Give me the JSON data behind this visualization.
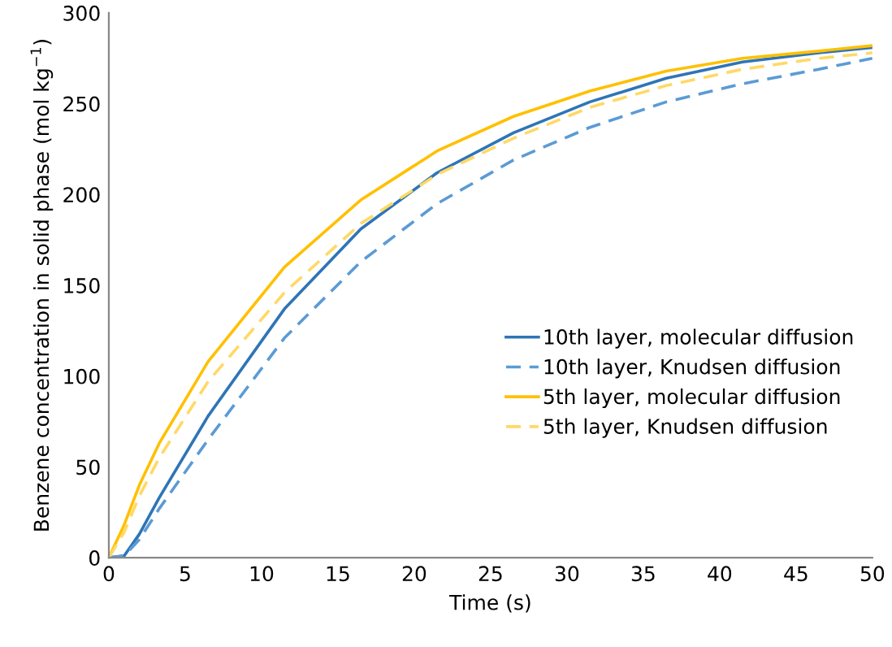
{
  "chart_data": {
    "type": "line",
    "xlabel": "Time (s)",
    "ylabel": "Benzene concentration in solid phase (mol kg$^{−1}$)",
    "x": [
      0,
      1,
      2,
      3.3,
      6.5,
      11.5,
      16.5,
      21.5,
      26.5,
      31.5,
      36.5,
      41.5,
      46.5,
      50
    ],
    "series": [
      {
        "name": "10th layer, molecular diffusion",
        "color": "#2e75b6",
        "line_style": "solid",
        "values": [
          0,
          1,
          13,
          33,
          78,
          137,
          181,
          212,
          234,
          251,
          264,
          273,
          278,
          281
        ]
      },
      {
        "name": "10th layer, Knudsen diffusion",
        "color": "#5b9bd5",
        "line_style": "dashed",
        "values": [
          0,
          1,
          10,
          27,
          65,
          121,
          163,
          195,
          219,
          237,
          251,
          261,
          269,
          275
        ]
      },
      {
        "name": "5th layer, molecular diffusion",
        "color": "#ffc000",
        "line_style": "solid",
        "values": [
          0,
          18,
          40,
          63,
          108,
          160,
          197,
          224,
          243,
          257,
          268,
          275,
          279,
          282
        ]
      },
      {
        "name": "5th layer, Knudsen diffusion",
        "color": "#ffd966",
        "line_style": "dashed",
        "values": [
          0,
          14,
          34,
          55,
          97,
          146,
          184,
          211,
          231,
          248,
          260,
          269,
          275,
          278
        ]
      }
    ],
    "xlim": [
      0,
      50
    ],
    "xticks": [
      0,
      5,
      10,
      15,
      20,
      25,
      30,
      35,
      40,
      45,
      50
    ],
    "ylim": [
      0,
      300
    ],
    "yticks": [
      0,
      50,
      100,
      150,
      200,
      250,
      300
    ],
    "grid": false,
    "legend": "right",
    "marker": "none"
  }
}
